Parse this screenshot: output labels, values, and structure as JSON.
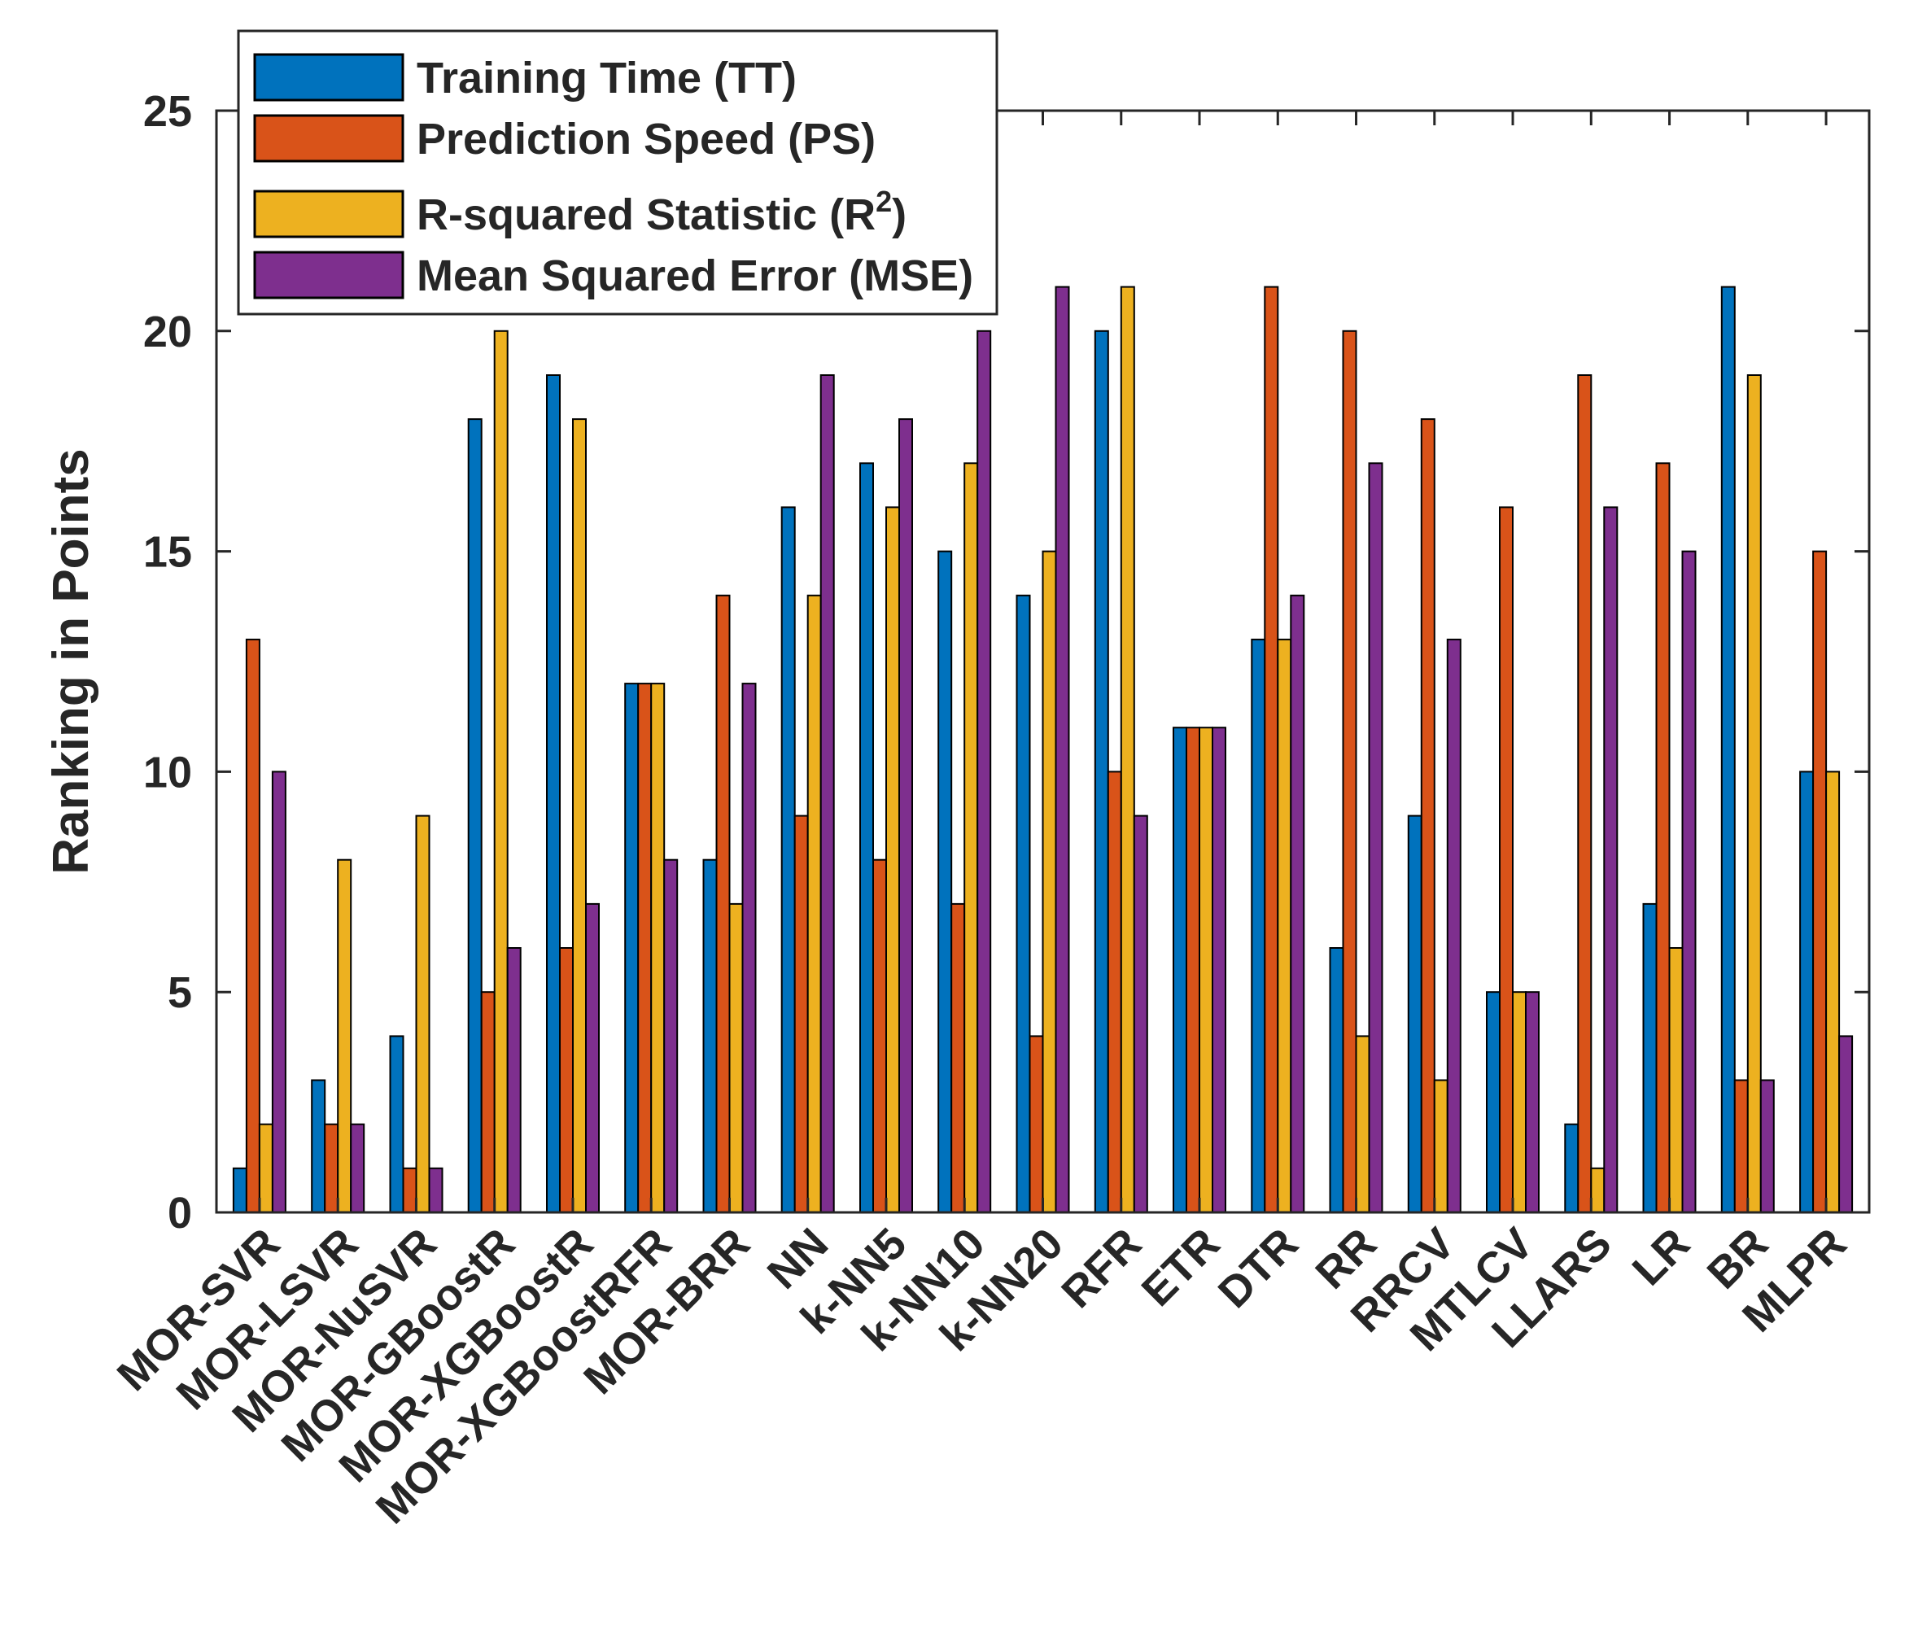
{
  "chart_data": {
    "type": "bar",
    "title": "",
    "xlabel": "",
    "ylabel": "Ranking in Points",
    "ylim": [
      0,
      25
    ],
    "yticks": [
      "0",
      "5",
      "10",
      "15",
      "20",
      "25"
    ],
    "grid": false,
    "legend_position": "top-left",
    "categories": [
      "MOR-SVR",
      "MOR-LSVR",
      "MOR-NuSVR",
      "MOR-GBoostR",
      "MOR-XGBoostR",
      "MOR-XGBoostRFR",
      "MOR-BRR",
      "NN",
      "k-NN5",
      "k-NN10",
      "k-NN20",
      "RFR",
      "ETR",
      "DTR",
      "RR",
      "RRCV",
      "MTLCV",
      "LLARS",
      "LR",
      "BR",
      "MLPR"
    ],
    "series": [
      {
        "name": "Training Time (TT)",
        "color": "#0072BD",
        "values": [
          1,
          3,
          4,
          18,
          19,
          12,
          8,
          16,
          17,
          15,
          14,
          20,
          11,
          13,
          6,
          9,
          5,
          2,
          7,
          21,
          10
        ]
      },
      {
        "name": "Prediction Speed (PS)",
        "color": "#D95319",
        "values": [
          13,
          2,
          1,
          5,
          6,
          12,
          14,
          9,
          8,
          7,
          4,
          10,
          11,
          21,
          20,
          18,
          16,
          19,
          17,
          3,
          15
        ]
      },
      {
        "name": "R-squared Statistic (R",
        "name_sup": "2",
        "name_end": ")",
        "color": "#EDB120",
        "values": [
          2,
          8,
          9,
          20,
          18,
          12,
          7,
          14,
          16,
          17,
          15,
          21,
          11,
          13,
          4,
          3,
          5,
          1,
          6,
          19,
          10
        ]
      },
      {
        "name": "Mean Squared Error (MSE)",
        "color": "#7E2F8E",
        "values": [
          10,
          2,
          1,
          6,
          7,
          8,
          12,
          19,
          18,
          20,
          21,
          9,
          11,
          14,
          17,
          13,
          5,
          16,
          15,
          3,
          4
        ]
      }
    ]
  }
}
